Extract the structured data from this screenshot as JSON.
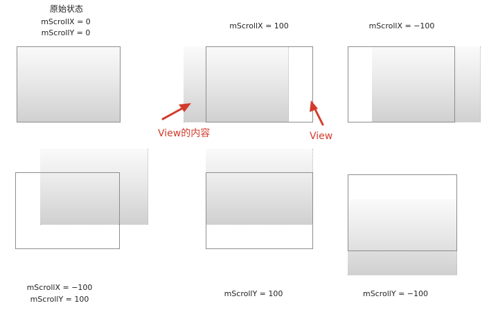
{
  "panels": {
    "original": {
      "title": "原始状态",
      "line1": "mScrollX = 0",
      "line2": "mScrollY = 0"
    },
    "scroll_x_pos": {
      "line1": "mScrollX = 100"
    },
    "scroll_x_neg": {
      "line1": "mScrollX = −100"
    },
    "scroll_xy_neg": {
      "line1": "mScrollX = −100",
      "line2": "mScrollY = 100"
    },
    "scroll_y_pos": {
      "line1": "mScrollY = 100"
    },
    "scroll_y_neg": {
      "line1": "mScrollY = −100"
    }
  },
  "annotations": {
    "content_label": "View的内容",
    "view_label": "View"
  },
  "colors": {
    "annotation": "#d23b2b",
    "view_border": "#8c8c8c",
    "gradient_top": "#fafafa",
    "gradient_bottom": "#d0d0d0"
  }
}
